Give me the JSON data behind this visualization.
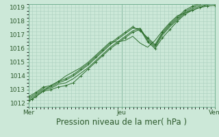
{
  "xlabel": "Pression niveau de la mer( hPa )",
  "background_color": "#cce8d8",
  "grid_major_color": "#aacfbe",
  "grid_minor_color": "#bbdccc",
  "line_color": "#2d6e2d",
  "ylim": [
    1011.75,
    1019.25
  ],
  "yticks": [
    1012,
    1013,
    1014,
    1015,
    1016,
    1017,
    1018,
    1019
  ],
  "day_labels": [
    "Mer",
    "Jeu",
    "Ven"
  ],
  "day_positions": [
    0.0,
    0.5,
    1.0
  ],
  "xmin": 0.0,
  "xmax": 1.0,
  "series": [
    [
      [
        0.0,
        0.02,
        0.04,
        0.08,
        0.12,
        0.16,
        0.2,
        0.24,
        0.28,
        0.32,
        0.36,
        0.4,
        0.44,
        0.48,
        0.52,
        0.56,
        0.6,
        0.64,
        0.68,
        0.72,
        0.76,
        0.8,
        0.84,
        0.88,
        0.92,
        0.96,
        1.0
      ],
      [
        1012.2,
        1012.3,
        1012.5,
        1012.9,
        1013.0,
        1013.2,
        1013.3,
        1013.5,
        1014.0,
        1014.5,
        1015.0,
        1015.5,
        1016.0,
        1016.4,
        1016.8,
        1017.2,
        1017.4,
        1016.5,
        1016.0,
        1016.8,
        1017.4,
        1018.0,
        1018.5,
        1018.8,
        1019.0,
        1019.1,
        1019.15
      ]
    ],
    [
      [
        0.0,
        0.04,
        0.08,
        0.12,
        0.16,
        0.2,
        0.24,
        0.28,
        0.32,
        0.36,
        0.4,
        0.44,
        0.48,
        0.52,
        0.56,
        0.6,
        0.64,
        0.68,
        0.72,
        0.76,
        0.8,
        0.84,
        0.88,
        0.92,
        0.96,
        1.0
      ],
      [
        1012.3,
        1012.6,
        1013.0,
        1013.1,
        1013.4,
        1013.5,
        1013.8,
        1014.2,
        1014.6,
        1015.1,
        1015.6,
        1016.1,
        1016.5,
        1016.9,
        1017.3,
        1017.5,
        1016.6,
        1016.1,
        1017.0,
        1017.6,
        1018.1,
        1018.6,
        1018.9,
        1019.1,
        1019.2,
        1019.25
      ]
    ],
    [
      [
        0.0,
        0.04,
        0.08,
        0.12,
        0.16,
        0.2,
        0.24,
        0.28,
        0.32,
        0.36,
        0.4,
        0.44,
        0.48,
        0.52,
        0.56,
        0.6,
        0.64,
        0.68,
        0.72,
        0.76,
        0.8,
        0.84,
        0.88,
        0.92,
        0.96,
        1.0
      ],
      [
        1012.4,
        1012.7,
        1013.1,
        1013.2,
        1013.5,
        1013.7,
        1014.0,
        1014.4,
        1014.8,
        1015.3,
        1015.8,
        1016.3,
        1016.7,
        1017.1,
        1017.5,
        1017.45,
        1016.7,
        1016.2,
        1017.1,
        1017.7,
        1018.2,
        1018.7,
        1019.0,
        1019.2,
        1019.3,
        1019.35
      ]
    ],
    [
      [
        0.0,
        0.04,
        0.08,
        0.12,
        0.16,
        0.2,
        0.24,
        0.28,
        0.32,
        0.36,
        0.4,
        0.44,
        0.48,
        0.52,
        0.56,
        0.6,
        0.64,
        0.68,
        0.72,
        0.76,
        0.8,
        0.84,
        0.88,
        0.92,
        0.96,
        1.0
      ],
      [
        1012.5,
        1012.8,
        1013.2,
        1013.3,
        1013.6,
        1013.8,
        1014.1,
        1014.5,
        1014.9,
        1015.4,
        1015.9,
        1016.4,
        1016.8,
        1017.2,
        1017.6,
        1017.3,
        1016.8,
        1016.3,
        1017.2,
        1017.8,
        1018.3,
        1018.8,
        1019.1,
        1019.3,
        1019.4,
        1019.45
      ]
    ],
    [
      [
        0.0,
        0.04,
        0.08,
        0.12,
        0.16,
        0.2,
        0.24,
        0.28,
        0.32,
        0.36,
        0.4,
        0.44,
        0.48,
        0.52,
        0.56,
        0.6,
        0.64,
        0.68,
        0.72,
        0.76,
        0.8,
        0.84,
        0.88,
        0.92,
        0.96,
        1.0
      ],
      [
        1012.2,
        1012.5,
        1012.9,
        1013.3,
        1013.6,
        1014.0,
        1014.3,
        1014.6,
        1015.0,
        1015.5,
        1016.0,
        1016.5,
        1016.5,
        1016.6,
        1016.9,
        1016.4,
        1016.1,
        1016.6,
        1017.3,
        1017.9,
        1018.4,
        1018.6,
        1018.8,
        1019.0,
        1019.2,
        1019.25
      ]
    ]
  ],
  "marked_series_indices": [
    0,
    3
  ],
  "font_color": "#2d5a2d",
  "tick_fontsize": 6.5,
  "label_fontsize": 8.5,
  "spine_color": "#6aaa8a"
}
